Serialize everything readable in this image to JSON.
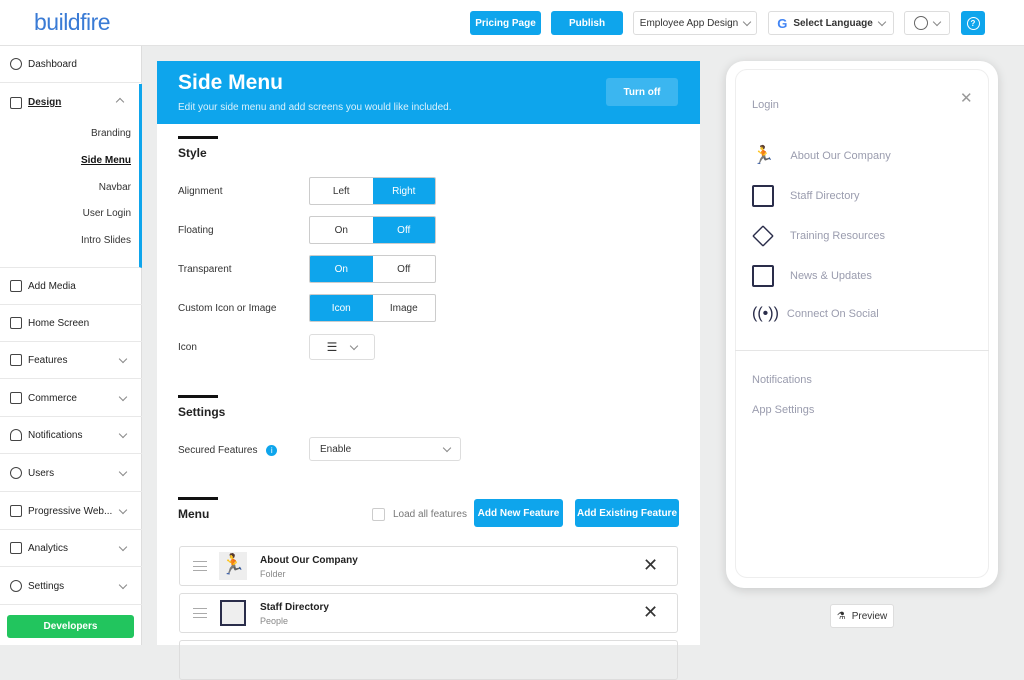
{
  "header": {
    "logo": "buildfire",
    "pricing": "Pricing Page",
    "publish": "Publish",
    "app_select": "Employee App Design",
    "language": "Select Language",
    "help_icon": "question-circle-icon"
  },
  "sidebar": {
    "items": [
      {
        "label": "Dashboard"
      },
      {
        "label": "Design"
      },
      {
        "label": "Add Media"
      },
      {
        "label": "Home Screen"
      },
      {
        "label": "Features"
      },
      {
        "label": "Commerce"
      },
      {
        "label": "Notifications"
      },
      {
        "label": "Users"
      },
      {
        "label": "Progressive Web..."
      },
      {
        "label": "Analytics"
      },
      {
        "label": "Settings"
      }
    ],
    "design_sub": [
      "Branding",
      "Side Menu",
      "Navbar",
      "User Login",
      "Intro Slides"
    ],
    "developers": "Developers"
  },
  "panel": {
    "title": "Side Menu",
    "subtitle": "Edit your side menu and add screens you would like included.",
    "turn_off": "Turn off",
    "style_title": "Style",
    "options": [
      {
        "label": "Alignment",
        "a": "Left",
        "b": "Right",
        "selected": "b"
      },
      {
        "label": "Floating",
        "a": "On",
        "b": "Off",
        "selected": "b"
      },
      {
        "label": "Transparent",
        "a": "On",
        "b": "Off",
        "selected": "a"
      },
      {
        "label": "Custom Icon or Image",
        "a": "Icon",
        "b": "Image",
        "selected": "a"
      }
    ],
    "icon_label": "Icon",
    "settings_title": "Settings",
    "secured_label": "Secured Features",
    "secured_value": "Enable",
    "menu_title": "Menu",
    "load_all": "Load all features",
    "add_new": "Add New Feature",
    "add_existing": "Add Existing Feature",
    "rows": [
      {
        "title": "About Our Company",
        "sub": "Folder"
      },
      {
        "title": "Staff Directory",
        "sub": "People"
      }
    ]
  },
  "phone": {
    "login": "Login",
    "items": [
      "About Our Company",
      "Staff Directory",
      "Training Resources",
      "News & Updates",
      "Connect On Social"
    ],
    "bottom": [
      "Notifications",
      "App Settings"
    ]
  },
  "preview": "Preview",
  "colors": {
    "accent": "#0ea5ec",
    "developers": "#22c55e"
  }
}
